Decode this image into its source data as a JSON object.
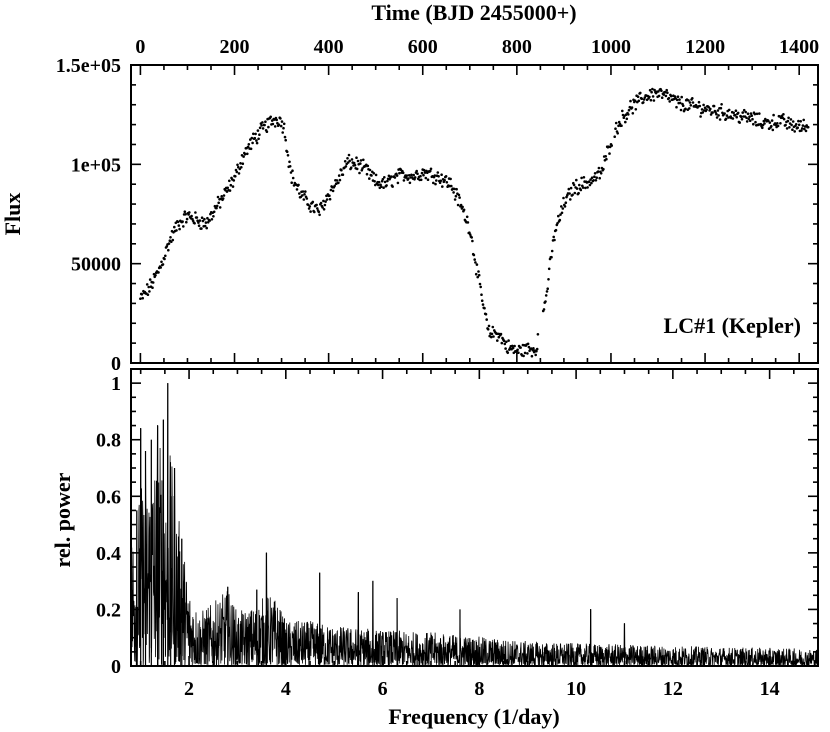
{
  "chart_data": [
    {
      "type": "scatter",
      "annotation": "LC#1 (Kepler)",
      "xlabel": "Time (BJD 2455000+)",
      "ylabel": "Flux",
      "xlim": [
        -20,
        1440
      ],
      "ylim": [
        0,
        150000
      ],
      "x_ticks": [
        0,
        200,
        400,
        600,
        800,
        1000,
        1200,
        1400
      ],
      "x_tick_labels": [
        "0",
        "200",
        "400",
        "600",
        "800",
        "1000",
        "1200",
        "1400"
      ],
      "y_ticks": [
        0,
        50000,
        100000,
        150000
      ],
      "y_tick_labels": [
        "0",
        "50000",
        "1e+05",
        "1.5e+05"
      ],
      "x_axis_position": "top",
      "grid": false,
      "marker_color": "#000000",
      "trend_knots": {
        "x": [
          0,
          20,
          40,
          60,
          80,
          100,
          120,
          140,
          160,
          180,
          200,
          220,
          240,
          260,
          280,
          295,
          305,
          320,
          340,
          360,
          380,
          400,
          420,
          440,
          460,
          480,
          500,
          520,
          540,
          560,
          580,
          600,
          620,
          640,
          660,
          680,
          700,
          720,
          740,
          760,
          780,
          800,
          820,
          840,
          860,
          880,
          900,
          920,
          940,
          960,
          980,
          1000,
          1020,
          1040,
          1060,
          1080,
          1100,
          1120,
          1140,
          1160,
          1180,
          1200,
          1220,
          1240,
          1260,
          1280,
          1300,
          1320,
          1340,
          1360,
          1380,
          1400,
          1420
        ],
        "y": [
          32000,
          38000,
          47000,
          60000,
          70000,
          74000,
          72000,
          70000,
          78000,
          85000,
          93000,
          105000,
          112000,
          118000,
          122000,
          123000,
          119000,
          95000,
          85000,
          80000,
          76000,
          85000,
          92000,
          101000,
          100000,
          97000,
          91000,
          90000,
          93000,
          95000,
          94000,
          96000,
          95000,
          93000,
          90000,
          80000,
          68000,
          40000,
          15000,
          15000,
          8000,
          6000,
          7000,
          7000,
          30000,
          65000,
          80000,
          88000,
          90000,
          92000,
          96000,
          112000,
          122000,
          128000,
          132000,
          135000,
          136000,
          134000,
          131000,
          130000,
          129000,
          128000,
          127000,
          126000,
          125000,
          124000,
          123000,
          121000,
          121000,
          122000,
          120000,
          119000,
          119000
        ]
      },
      "scatter_amplitude": 3000,
      "time_step": 1.6
    },
    {
      "type": "line",
      "xlabel": "Frequency (1/day)",
      "ylabel": "rel. power",
      "xlim": [
        0.8,
        15.0
      ],
      "ylim": [
        0,
        1.05
      ],
      "x_ticks": [
        2,
        4,
        6,
        8,
        10,
        12,
        14
      ],
      "x_tick_labels": [
        "2",
        "4",
        "6",
        "8",
        "10",
        "12",
        "14"
      ],
      "y_ticks": [
        0,
        0.2,
        0.4,
        0.6,
        0.8,
        1.0
      ],
      "y_tick_labels": [
        "0",
        "0.2",
        "0.4",
        "0.6",
        "0.8",
        "1"
      ],
      "grid": false,
      "line_color": "#000000",
      "envelope": {
        "freq": [
          0.8,
          1.0,
          1.2,
          1.4,
          1.6,
          1.8,
          2.0,
          2.2,
          2.5,
          2.8,
          3.0,
          3.3,
          3.6,
          3.8,
          4.0,
          4.5,
          5.0,
          6.0,
          7.0,
          8.0,
          9.0,
          10.0,
          11.0,
          12.0,
          13.0,
          14.0,
          15.0
        ],
        "power": [
          0.3,
          0.4,
          0.45,
          0.5,
          0.48,
          0.32,
          0.18,
          0.12,
          0.14,
          0.17,
          0.12,
          0.13,
          0.16,
          0.15,
          0.1,
          0.1,
          0.09,
          0.08,
          0.075,
          0.065,
          0.055,
          0.05,
          0.048,
          0.045,
          0.042,
          0.04,
          0.038
        ]
      },
      "peaks": [
        {
          "freq": 1.56,
          "power": 1.0
        },
        {
          "freq": 1.47,
          "power": 0.87
        },
        {
          "freq": 1.35,
          "power": 0.85
        },
        {
          "freq": 1.0,
          "power": 0.84
        },
        {
          "freq": 1.22,
          "power": 0.8
        },
        {
          "freq": 1.1,
          "power": 0.76
        },
        {
          "freq": 1.7,
          "power": 0.7
        },
        {
          "freq": 1.62,
          "power": 0.6
        },
        {
          "freq": 0.92,
          "power": 0.55
        },
        {
          "freq": 1.85,
          "power": 0.45
        },
        {
          "freq": 3.6,
          "power": 0.4
        },
        {
          "freq": 4.7,
          "power": 0.33
        },
        {
          "freq": 2.8,
          "power": 0.28
        },
        {
          "freq": 5.8,
          "power": 0.3
        },
        {
          "freq": 3.4,
          "power": 0.27
        },
        {
          "freq": 5.5,
          "power": 0.26
        },
        {
          "freq": 6.3,
          "power": 0.24
        },
        {
          "freq": 7.6,
          "power": 0.2
        },
        {
          "freq": 10.3,
          "power": 0.2
        },
        {
          "freq": 11.0,
          "power": 0.15
        }
      ]
    }
  ]
}
